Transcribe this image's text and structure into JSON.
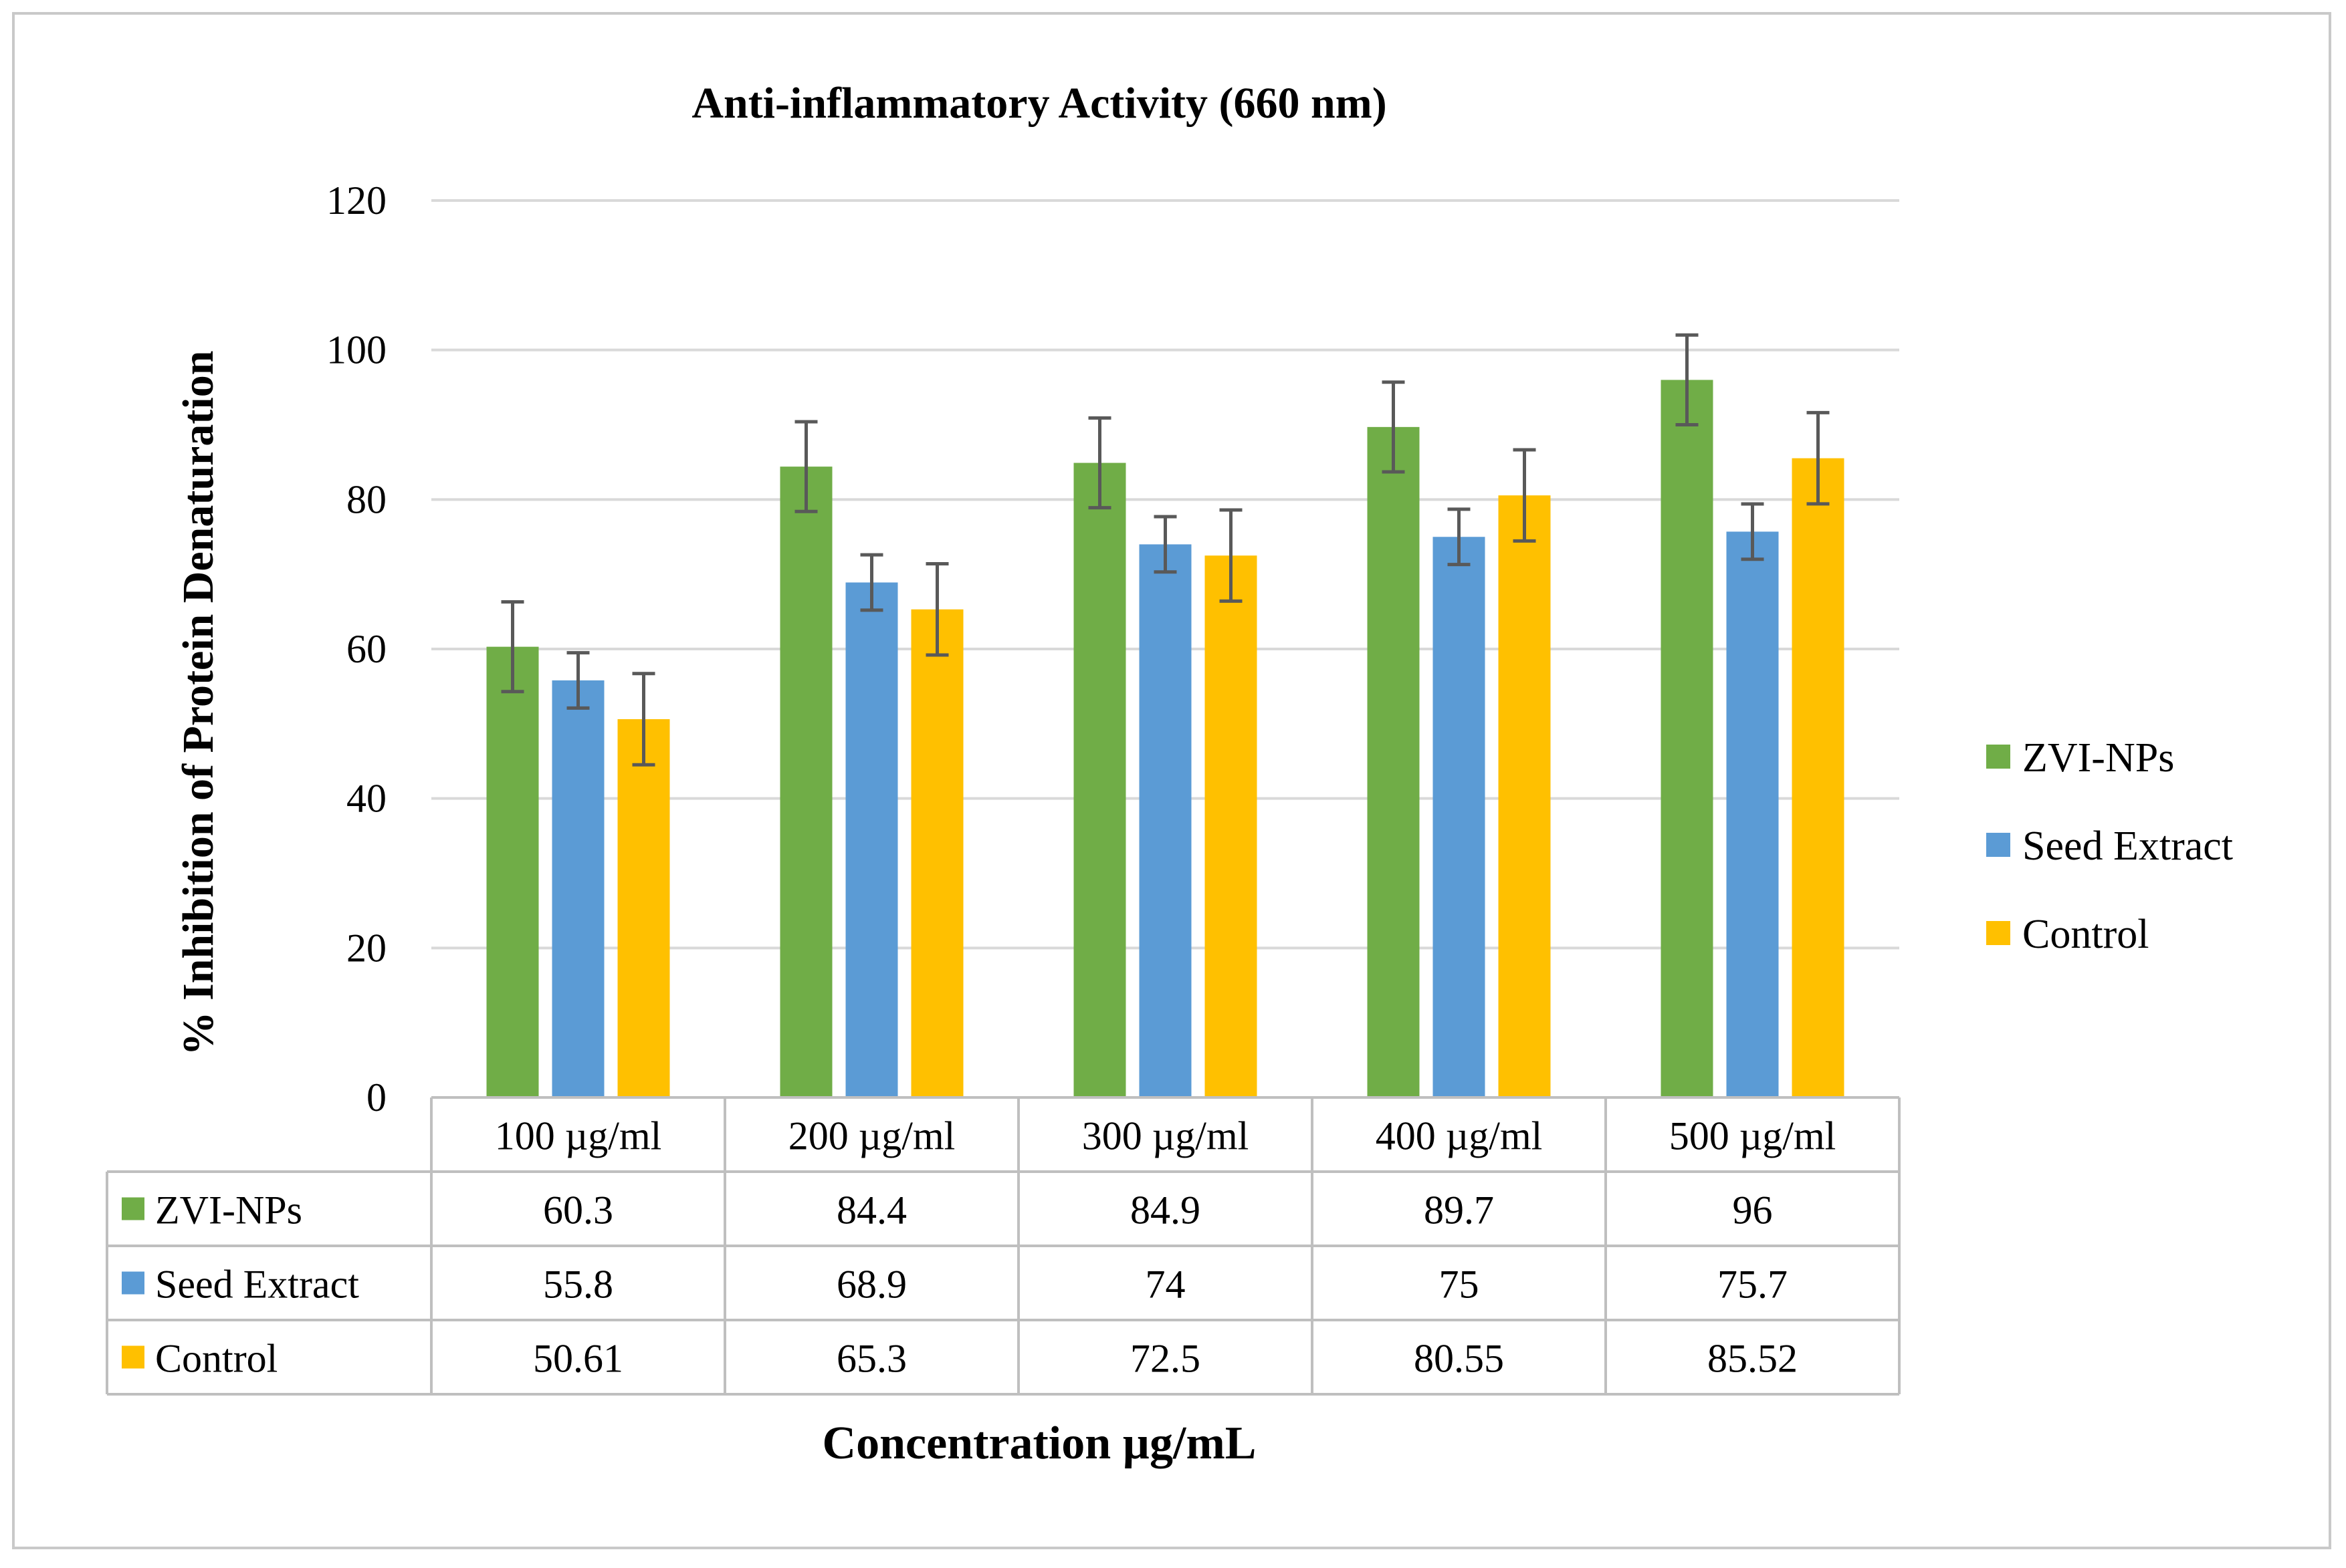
{
  "chart_data": {
    "type": "bar",
    "title": "Anti-inflammatory Activity (660 nm)",
    "xlabel": "Concentration µg/mL",
    "ylabel": "% Inhibition of Protein Denaturation",
    "ylim": [
      0,
      120
    ],
    "yticks": [
      0,
      20,
      40,
      60,
      80,
      100,
      120
    ],
    "ytick_labels": [
      "0",
      "20",
      "40",
      "60",
      "80",
      "100",
      "120"
    ],
    "grid": true,
    "legend_position": "right",
    "data_table": true,
    "categories": [
      "100 µg/ml",
      "200 µg/ml",
      "300 µg/ml",
      "400 µg/ml",
      "500 µg/ml"
    ],
    "series": [
      {
        "name": "ZVI-NPs",
        "color": "#70AD47",
        "values": [
          60.3,
          84.4,
          84.9,
          89.7,
          96
        ],
        "value_labels": [
          "60.3",
          "84.4",
          "84.9",
          "89.7",
          "96"
        ],
        "error": [
          6,
          6,
          6,
          6,
          6
        ]
      },
      {
        "name": "Seed Extract",
        "color": "#5B9BD5",
        "values": [
          55.8,
          68.9,
          74,
          75,
          75.7
        ],
        "value_labels": [
          "55.8",
          "68.9",
          "74",
          "75",
          "75.7"
        ],
        "error": [
          3.7,
          3.7,
          3.7,
          3.7,
          3.7
        ]
      },
      {
        "name": "Control",
        "color": "#FFC000",
        "values": [
          50.61,
          65.3,
          72.5,
          80.55,
          85.52
        ],
        "value_labels": [
          "50.61",
          "65.3",
          "72.5",
          "80.55",
          "85.52"
        ],
        "error": [
          6.1,
          6.1,
          6.1,
          6.1,
          6.1
        ]
      }
    ]
  }
}
